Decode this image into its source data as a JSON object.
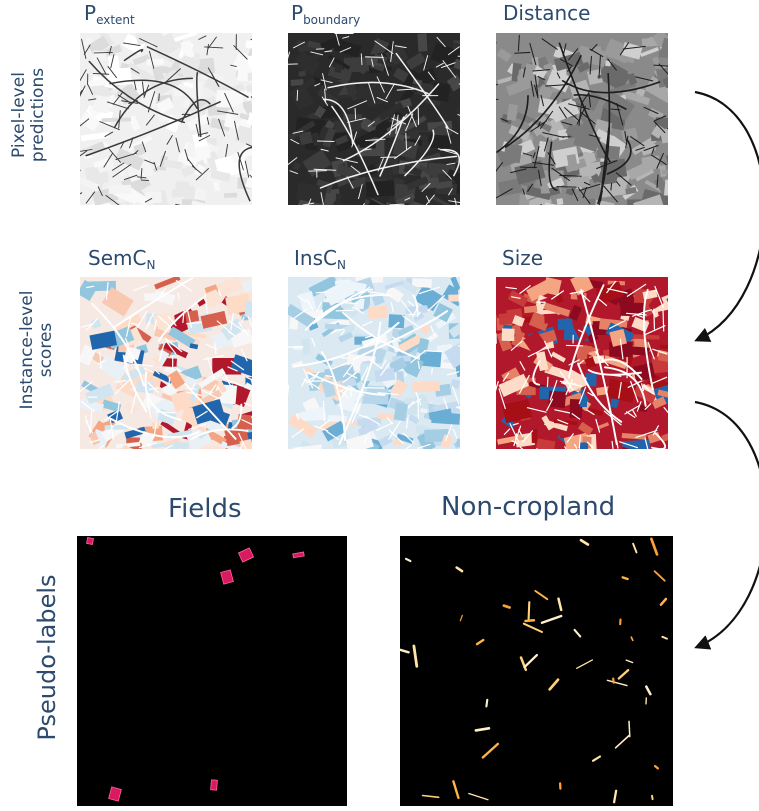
{
  "row_labels": {
    "pixel": [
      "Pixel-level",
      "predictions"
    ],
    "instance": [
      "Instance-level",
      "scores"
    ],
    "pseudo": "Pseudo-labels"
  },
  "pixel_panels": [
    {
      "base": "P",
      "sub": "extent",
      "palette": "light-gray"
    },
    {
      "base": "P",
      "sub": "boundary",
      "palette": "dark-gray"
    },
    {
      "base": "Distance",
      "sub": "",
      "palette": "mid-gray"
    }
  ],
  "instance_panels": [
    {
      "base": "SemC",
      "sub": "N",
      "palette": "red-blue-diverging-light"
    },
    {
      "base": "InsC",
      "sub": "N",
      "palette": "blue-light"
    },
    {
      "base": "Size",
      "sub": "",
      "palette": "red-dominant"
    }
  ],
  "pseudo_panels": [
    {
      "title": "Fields",
      "mark_color": "#d81b60"
    },
    {
      "title": "Non-cropland",
      "mark_color": "#ffb347"
    }
  ],
  "colors": {
    "label_text": "#2c4a6e",
    "arrow": "#111111",
    "panel_background_dark": "#000000"
  }
}
